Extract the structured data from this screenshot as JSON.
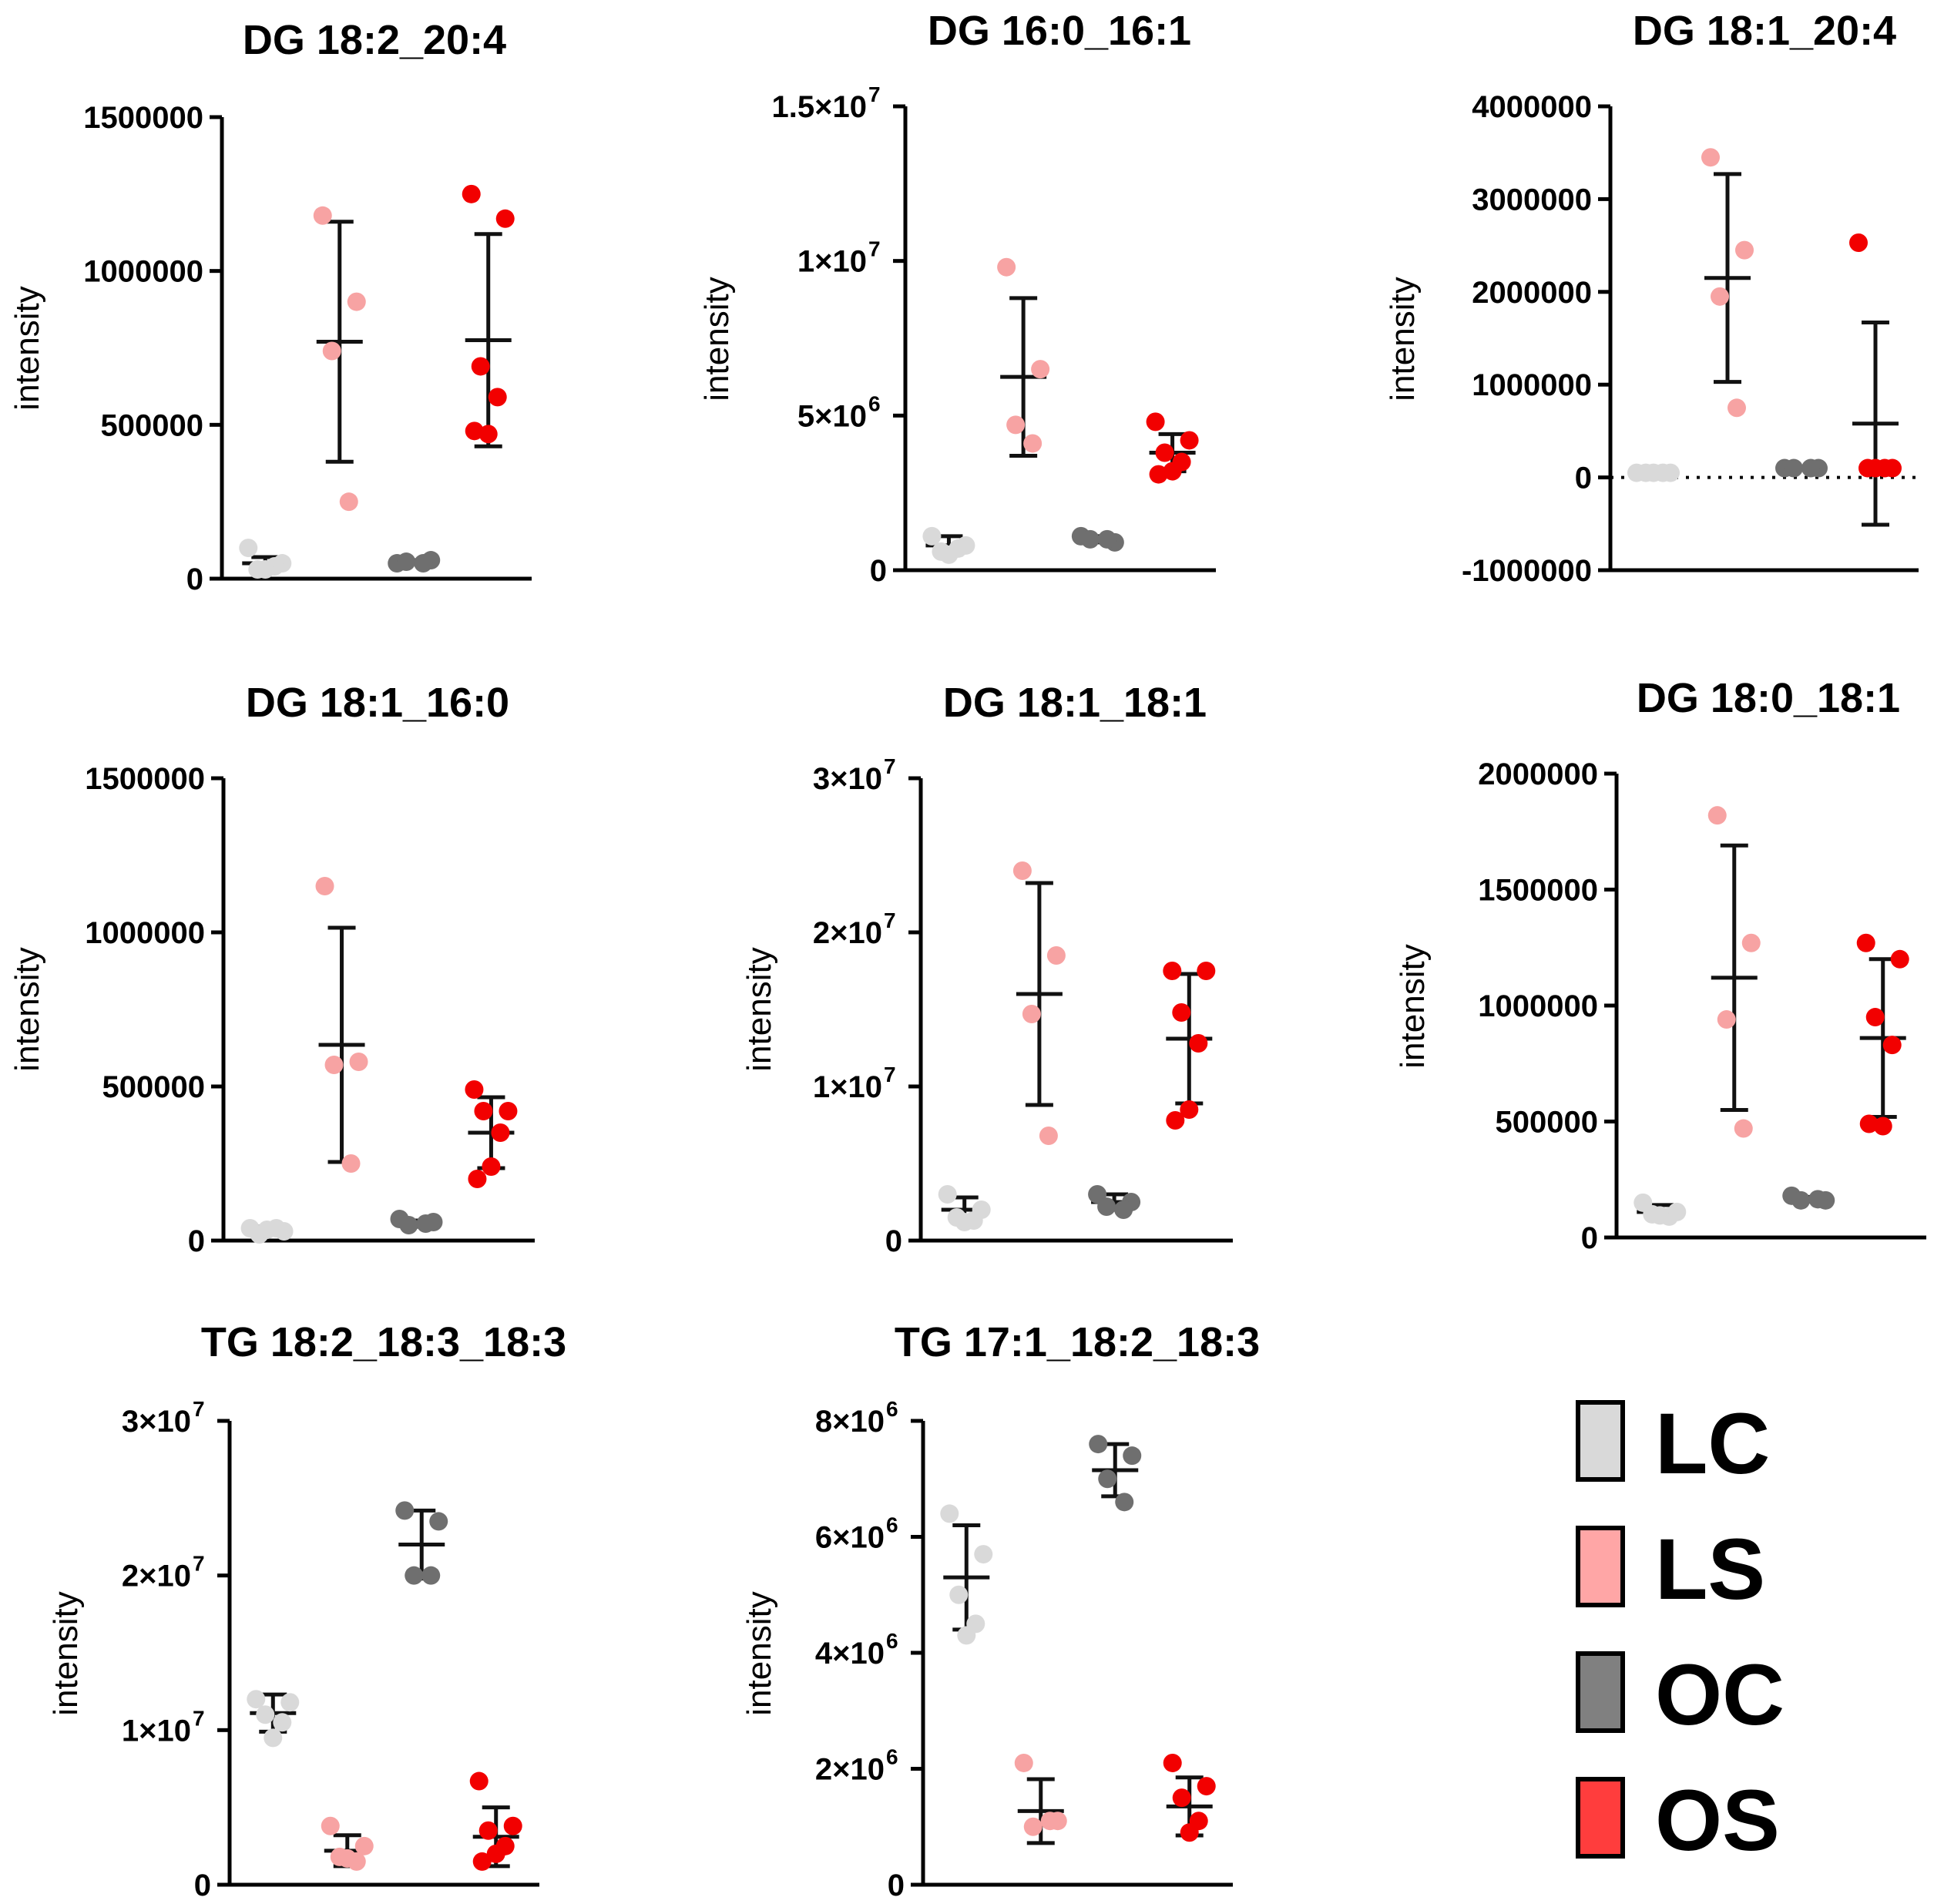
{
  "legend": {
    "items": [
      {
        "label": "LC",
        "color": "#d9d9d9"
      },
      {
        "label": "LS",
        "color": "#ffa6a6"
      },
      {
        "label": "OC",
        "color": "#808080"
      },
      {
        "label": "OS",
        "color": "#ff3d3d"
      }
    ]
  },
  "colors": {
    "LC": "#d9d9d9",
    "LS": "#f7a3a3",
    "OC": "#6f6f6f",
    "OS": "#f20000"
  },
  "chart_data": [
    {
      "type": "scatter",
      "title": "DG 18:2_20:4",
      "ylabel": "intensity",
      "ylim": [
        0,
        1500000
      ],
      "yticks": [
        0,
        500000,
        1000000,
        1500000
      ],
      "ytick_labels": [
        "0",
        "500000",
        "1000000",
        "1500000"
      ],
      "zero_line": false,
      "groups": [
        {
          "name": "LC",
          "values": [
            100000,
            50000,
            30000,
            40000,
            30000
          ],
          "mean": 50000,
          "sd": 20000
        },
        {
          "name": "LS",
          "values": [
            1180000,
            900000,
            740000,
            250000
          ],
          "mean": 770000,
          "sd": 390000
        },
        {
          "name": "OC",
          "values": [
            50000,
            60000,
            55000,
            50000
          ],
          "mean": 55000,
          "sd": 5000
        },
        {
          "name": "OS",
          "values": [
            1250000,
            1170000,
            690000,
            590000,
            470000,
            480000
          ],
          "mean": 775000,
          "sd": 345000
        }
      ]
    },
    {
      "type": "scatter",
      "title": "DG 16:0_16:1",
      "ylabel": "intensity",
      "ylim": [
        0,
        15000000
      ],
      "yticks": [
        0,
        5000000,
        10000000,
        15000000
      ],
      "ytick_labels": [
        {
          "m": "0",
          "e": ""
        },
        {
          "m": "5×10",
          "e": "6"
        },
        {
          "m": "1×10",
          "e": "7"
        },
        {
          "m": "1.5×10",
          "e": "7"
        }
      ],
      "zero_line": false,
      "groups": [
        {
          "name": "LC",
          "values": [
            1100000,
            800000,
            600000,
            700000,
            500000
          ],
          "mean": 800000,
          "sd": 300000
        },
        {
          "name": "LS",
          "values": [
            9800000,
            6500000,
            4700000,
            4100000
          ],
          "mean": 6250000,
          "sd": 2550000
        },
        {
          "name": "OC",
          "values": [
            1100000,
            900000,
            1000000,
            1000000
          ],
          "mean": 1000000,
          "sd": 100000
        },
        {
          "name": "OS",
          "values": [
            4800000,
            4200000,
            3800000,
            3500000,
            3200000,
            3100000
          ],
          "mean": 3800000,
          "sd": 600000
        }
      ]
    },
    {
      "type": "scatter",
      "title": "DG 18:1_20:4",
      "ylabel": "intensity",
      "ylim": [
        -1000000,
        4000000
      ],
      "yticks": [
        -1000000,
        0,
        1000000,
        2000000,
        3000000,
        4000000
      ],
      "ytick_labels": [
        "-1000000",
        "0",
        "1000000",
        "2000000",
        "3000000",
        "4000000"
      ],
      "zero_line": true,
      "groups": [
        {
          "name": "LC",
          "values": [
            50000,
            50000,
            50000,
            50000,
            50000
          ],
          "mean": 50000,
          "sd": 0
        },
        {
          "name": "LS",
          "values": [
            3450000,
            2450000,
            1950000,
            750000
          ],
          "mean": 2150000,
          "sd": 1120000
        },
        {
          "name": "OC",
          "values": [
            100000,
            100000,
            100000,
            100000
          ],
          "mean": 100000,
          "sd": 0
        },
        {
          "name": "OS",
          "values": [
            2530000,
            100000,
            100000,
            100000,
            100000
          ],
          "mean": 580000,
          "sd": 1090000
        }
      ]
    },
    {
      "type": "scatter",
      "title": "DG 18:1_16:0",
      "ylabel": "intensity",
      "ylim": [
        0,
        1500000
      ],
      "yticks": [
        0,
        500000,
        1000000,
        1500000
      ],
      "ytick_labels": [
        "0",
        "500000",
        "1000000",
        "1500000"
      ],
      "zero_line": false,
      "groups": [
        {
          "name": "LC",
          "values": [
            40000,
            30000,
            20000,
            40000,
            35000
          ],
          "mean": 35000,
          "sd": 10000
        },
        {
          "name": "LS",
          "values": [
            1150000,
            580000,
            570000,
            250000
          ],
          "mean": 635000,
          "sd": 380000
        },
        {
          "name": "OC",
          "values": [
            70000,
            60000,
            50000,
            55000
          ],
          "mean": 55000,
          "sd": 10000
        },
        {
          "name": "OS",
          "values": [
            490000,
            420000,
            420000,
            350000,
            240000,
            200000
          ],
          "mean": 350000,
          "sd": 115000
        }
      ]
    },
    {
      "type": "scatter",
      "title": "DG 18:1_18:1",
      "ylabel": "intensity",
      "ylim": [
        0,
        30000000
      ],
      "yticks": [
        0,
        10000000,
        20000000,
        30000000
      ],
      "ytick_labels": [
        {
          "m": "0",
          "e": ""
        },
        {
          "m": "1×10",
          "e": "7"
        },
        {
          "m": "2×10",
          "e": "7"
        },
        {
          "m": "3×10",
          "e": "7"
        }
      ],
      "zero_line": false,
      "groups": [
        {
          "name": "LC",
          "values": [
            3000000,
            2000000,
            1500000,
            1300000,
            1200000
          ],
          "mean": 2000000,
          "sd": 800000
        },
        {
          "name": "LS",
          "values": [
            24000000,
            18500000,
            14700000,
            6800000
          ],
          "mean": 16000000,
          "sd": 7200000
        },
        {
          "name": "OC",
          "values": [
            3000000,
            2500000,
            2200000,
            2000000
          ],
          "mean": 2500000,
          "sd": 500000
        },
        {
          "name": "OS",
          "values": [
            17500000,
            17500000,
            14800000,
            12800000,
            8500000,
            7800000
          ],
          "mean": 13100000,
          "sd": 4200000
        }
      ]
    },
    {
      "type": "scatter",
      "title": "DG 18:0_18:1",
      "ylabel": "intensity",
      "ylim": [
        0,
        2000000
      ],
      "yticks": [
        0,
        500000,
        1000000,
        1500000,
        2000000
      ],
      "ytick_labels": [
        "0",
        "500000",
        "1000000",
        "1500000",
        "2000000"
      ],
      "zero_line": false,
      "groups": [
        {
          "name": "LC",
          "values": [
            150000,
            110000,
            100000,
            90000,
            95000
          ],
          "mean": 110000,
          "sd": 30000
        },
        {
          "name": "LS",
          "values": [
            1820000,
            1270000,
            940000,
            470000
          ],
          "mean": 1120000,
          "sd": 570000
        },
        {
          "name": "OC",
          "values": [
            180000,
            160000,
            160000,
            165000
          ],
          "mean": 165000,
          "sd": 10000
        },
        {
          "name": "OS",
          "values": [
            1270000,
            1200000,
            950000,
            830000,
            480000,
            490000
          ],
          "mean": 860000,
          "sd": 340000
        }
      ]
    },
    {
      "type": "scatter",
      "title": "TG 18:2_18:3_18:3",
      "ylabel": "intensity",
      "ylim": [
        0,
        30000000
      ],
      "yticks": [
        0,
        10000000,
        20000000,
        30000000
      ],
      "ytick_labels": [
        {
          "m": "0",
          "e": ""
        },
        {
          "m": "1×10",
          "e": "7"
        },
        {
          "m": "2×10",
          "e": "7"
        },
        {
          "m": "3×10",
          "e": "7"
        }
      ],
      "zero_line": false,
      "groups": [
        {
          "name": "LC",
          "values": [
            12000000,
            11800000,
            11000000,
            10500000,
            9500000
          ],
          "mean": 11100000,
          "sd": 1200000
        },
        {
          "name": "LS",
          "values": [
            3800000,
            2500000,
            1800000,
            1500000,
            1700000
          ],
          "mean": 2200000,
          "sd": 1000000
        },
        {
          "name": "OC",
          "values": [
            24200000,
            23500000,
            20000000,
            20000000
          ],
          "mean": 22000000,
          "sd": 2200000
        },
        {
          "name": "OS",
          "values": [
            6700000,
            3800000,
            3500000,
            2500000,
            2000000,
            1500000
          ],
          "mean": 3100000,
          "sd": 1900000
        }
      ]
    },
    {
      "type": "scatter",
      "title": "TG 17:1_18:2_18:3",
      "ylabel": "intensity",
      "ylim": [
        0,
        8000000
      ],
      "yticks": [
        0,
        2000000,
        4000000,
        6000000,
        8000000
      ],
      "ytick_labels": [
        {
          "m": "0",
          "e": ""
        },
        {
          "m": "2×10",
          "e": "6"
        },
        {
          "m": "4×10",
          "e": "6"
        },
        {
          "m": "6×10",
          "e": "6"
        },
        {
          "m": "8×10",
          "e": "6"
        }
      ],
      "zero_line": false,
      "groups": [
        {
          "name": "LC",
          "values": [
            6400000,
            5700000,
            5000000,
            4500000,
            4300000
          ],
          "mean": 5300000,
          "sd": 900000
        },
        {
          "name": "LS",
          "values": [
            2100000,
            1100000,
            1000000,
            1100000
          ],
          "mean": 1270000,
          "sd": 550000
        },
        {
          "name": "OC",
          "values": [
            7600000,
            7400000,
            7000000,
            6600000
          ],
          "mean": 7150000,
          "sd": 450000
        },
        {
          "name": "OS",
          "values": [
            2100000,
            1700000,
            1500000,
            1100000,
            900000
          ],
          "mean": 1350000,
          "sd": 500000
        }
      ]
    }
  ]
}
